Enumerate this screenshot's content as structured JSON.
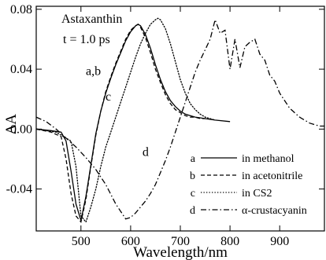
{
  "chart_data": {
    "type": "line",
    "title": "Astaxanthin",
    "subtitle": "t = 1.0 ps",
    "xlabel": "Wavelength/nm",
    "ylabel": "ΔA",
    "xlim": [
      410,
      990
    ],
    "ylim": [
      -0.068,
      0.082
    ],
    "xticks": [
      500,
      600,
      700,
      800,
      900
    ],
    "yticks": [
      -0.04,
      0.0,
      0.04,
      0.08
    ],
    "ytick_labels": [
      "-0.04",
      "0.00",
      "0.04",
      "0.08"
    ],
    "grid": false,
    "legend_position": "bottom-right",
    "series": [
      {
        "id": "a",
        "name": "in methanol",
        "dash": "solid",
        "x": [
          410,
          440,
          460,
          470,
          480,
          490,
          500,
          510,
          520,
          530,
          540,
          550,
          560,
          570,
          580,
          590,
          600,
          610,
          615,
          620,
          630,
          640,
          650,
          660,
          670,
          680,
          690,
          700,
          710,
          720,
          730,
          740,
          750,
          770,
          800
        ],
        "y": [
          0.0,
          -0.001,
          -0.002,
          -0.008,
          -0.028,
          -0.05,
          -0.061,
          -0.045,
          -0.024,
          -0.003,
          0.012,
          0.024,
          0.034,
          0.043,
          0.051,
          0.059,
          0.065,
          0.069,
          0.07,
          0.069,
          0.063,
          0.054,
          0.043,
          0.033,
          0.025,
          0.019,
          0.015,
          0.012,
          0.01,
          0.009,
          0.008,
          0.0075,
          0.007,
          0.006,
          0.005
        ]
      },
      {
        "id": "b",
        "name": "in acetonitrile",
        "dash": "dashed",
        "x": [
          410,
          440,
          460,
          470,
          480,
          490,
          500,
          510,
          520,
          530,
          540,
          550,
          560,
          570,
          580,
          590,
          600,
          610,
          615,
          620,
          630,
          640,
          650,
          660,
          670,
          680,
          690,
          700,
          710,
          720,
          730,
          740,
          750
        ],
        "y": [
          0.0,
          -0.002,
          -0.005,
          -0.02,
          -0.043,
          -0.058,
          -0.062,
          -0.047,
          -0.025,
          -0.004,
          0.012,
          0.025,
          0.035,
          0.044,
          0.052,
          0.06,
          0.066,
          0.069,
          0.07,
          0.068,
          0.061,
          0.051,
          0.04,
          0.031,
          0.023,
          0.017,
          0.013,
          0.011,
          0.009,
          0.008,
          0.008,
          0.007,
          0.007
        ]
      },
      {
        "id": "c",
        "name": "in CS2",
        "dash": "dotted",
        "x": [
          410,
          450,
          480,
          490,
          500,
          510,
          520,
          530,
          540,
          550,
          560,
          570,
          580,
          590,
          600,
          610,
          620,
          630,
          640,
          650,
          655,
          660,
          670,
          680,
          690,
          700,
          710,
          720,
          730,
          740,
          750,
          770
        ],
        "y": [
          0.0,
          -0.002,
          -0.008,
          -0.025,
          -0.058,
          -0.062,
          -0.052,
          -0.04,
          -0.025,
          -0.012,
          -0.002,
          0.008,
          0.018,
          0.028,
          0.038,
          0.048,
          0.057,
          0.064,
          0.07,
          0.073,
          0.074,
          0.073,
          0.067,
          0.057,
          0.045,
          0.033,
          0.024,
          0.017,
          0.013,
          0.01,
          0.008,
          0.006
        ]
      },
      {
        "id": "d",
        "name": "α-crustacyanin",
        "dash": "dashdot",
        "x": [
          410,
          430,
          450,
          470,
          490,
          510,
          530,
          550,
          570,
          590,
          600,
          610,
          620,
          630,
          640,
          650,
          660,
          670,
          680,
          690,
          700,
          710,
          720,
          730,
          740,
          750,
          760,
          770,
          780,
          790,
          800,
          810,
          820,
          830,
          840,
          850,
          860,
          870,
          880,
          890,
          900,
          910,
          920,
          930,
          940,
          950,
          960,
          970,
          980,
          990
        ],
        "y": [
          0.008,
          0.005,
          0.0,
          -0.006,
          -0.012,
          -0.019,
          -0.027,
          -0.037,
          -0.05,
          -0.06,
          -0.059,
          -0.056,
          -0.052,
          -0.048,
          -0.043,
          -0.037,
          -0.029,
          -0.021,
          -0.012,
          -0.002,
          0.008,
          0.018,
          0.028,
          0.038,
          0.046,
          0.053,
          0.06,
          0.073,
          0.064,
          0.066,
          0.04,
          0.06,
          0.041,
          0.055,
          0.058,
          0.06,
          0.05,
          0.046,
          0.036,
          0.032,
          0.024,
          0.019,
          0.014,
          0.011,
          0.008,
          0.006,
          0.004,
          0.003,
          0.002,
          0.002
        ]
      }
    ],
    "annotations": [
      {
        "text": "a,b",
        "x": 525,
        "y": 0.036
      },
      {
        "text": "c",
        "x": 555,
        "y": 0.019
      },
      {
        "text": "d",
        "x": 630,
        "y": -0.018
      }
    ]
  }
}
